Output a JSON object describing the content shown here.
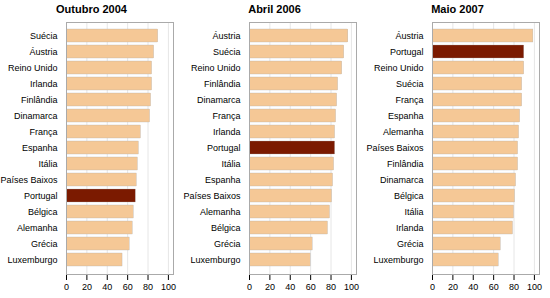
{
  "chart_data": [
    {
      "type": "bar",
      "orientation": "horizontal",
      "title": "Outubro 2004",
      "categories": [
        "Suécia",
        "Áustria",
        "Reino Unido",
        "Irlanda",
        "Finlândia",
        "Dinamarca",
        "França",
        "Espanha",
        "Itália",
        "Países Baixos",
        "Portugal",
        "Bélgica",
        "Alemanha",
        "Grécia",
        "Luxemburgo"
      ],
      "values": [
        90,
        86,
        84,
        84,
        83,
        82,
        73,
        71,
        70,
        69,
        68,
        66,
        65,
        62,
        55
      ],
      "colors": [
        "#F5C896",
        "#F5C896",
        "#F5C896",
        "#F5C896",
        "#F5C896",
        "#F5C896",
        "#F5C896",
        "#F5C896",
        "#F5C896",
        "#F5C896",
        "#7B1A00",
        "#F5C896",
        "#F5C896",
        "#F5C896",
        "#F5C896"
      ],
      "xlim": [
        0,
        105
      ],
      "xticks": [
        0,
        20,
        40,
        60,
        80,
        100
      ],
      "grid": true
    },
    {
      "type": "bar",
      "orientation": "horizontal",
      "title": "Abril 2006",
      "categories": [
        "Áustria",
        "Suécia",
        "Reino Unido",
        "Finlândia",
        "Dinamarca",
        "França",
        "Irlanda",
        "Portugal",
        "Itália",
        "Espanha",
        "Países Baixos",
        "Alemanha",
        "Bélgica",
        "Grécia",
        "Luxemburgo"
      ],
      "values": [
        97,
        93,
        91,
        87,
        86,
        85,
        84,
        84,
        83,
        82,
        81,
        79,
        77,
        62,
        60
      ],
      "colors": [
        "#F5C896",
        "#F5C896",
        "#F5C896",
        "#F5C896",
        "#F5C896",
        "#F5C896",
        "#F5C896",
        "#7B1A00",
        "#F5C896",
        "#F5C896",
        "#F5C896",
        "#F5C896",
        "#F5C896",
        "#F5C896",
        "#F5C896"
      ],
      "xlim": [
        0,
        105
      ],
      "xticks": [
        0,
        20,
        40,
        60,
        80,
        100
      ],
      "grid": true
    },
    {
      "type": "bar",
      "orientation": "horizontal",
      "title": "Maio 2007",
      "categories": [
        "Áustria",
        "Portugal",
        "Reino Unido",
        "Suécia",
        "França",
        "Espanha",
        "Alemanha",
        "Países Baixos",
        "Finlândia",
        "Dinamarca",
        "Bélgica",
        "Itália",
        "Irlanda",
        "Grécia",
        "Luxemburgo"
      ],
      "values": [
        99,
        90,
        90,
        88,
        88,
        86,
        85,
        84,
        84,
        82,
        81,
        80,
        79,
        67,
        65
      ],
      "colors": [
        "#F5C896",
        "#7B1A00",
        "#F5C896",
        "#F5C896",
        "#F5C896",
        "#F5C896",
        "#F5C896",
        "#F5C896",
        "#F5C896",
        "#F5C896",
        "#F5C896",
        "#F5C896",
        "#F5C896",
        "#F5C896",
        "#F5C896"
      ],
      "xlim": [
        0,
        105
      ],
      "xticks": [
        0,
        20,
        40,
        60,
        80,
        100
      ],
      "grid": true
    }
  ]
}
